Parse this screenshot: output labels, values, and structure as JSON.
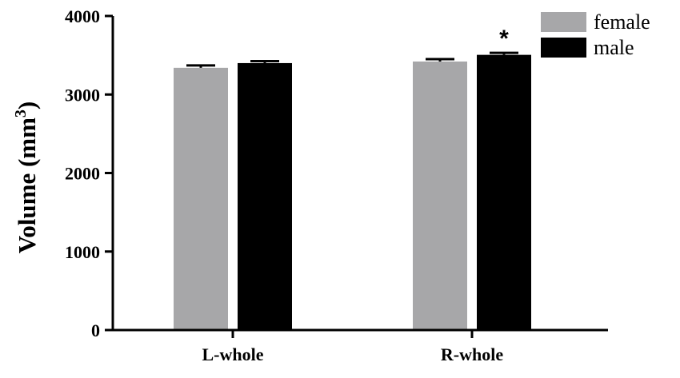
{
  "chart_data": {
    "type": "bar",
    "categories": [
      "L-whole",
      "R-whole"
    ],
    "series": [
      {
        "name": "female",
        "values": [
          3340,
          3420
        ],
        "errors": [
          30,
          30
        ],
        "color": "#a7a7a9"
      },
      {
        "name": "male",
        "values": [
          3400,
          3505
        ],
        "errors": [
          25,
          25
        ],
        "color": "#000000"
      }
    ],
    "ylabel_text": "Volume (mm",
    "ylabel_sup": "3",
    "ylabel_close": ")",
    "ylim": [
      0,
      4000
    ],
    "yticks": [
      "0",
      "1000",
      "2000",
      "3000",
      "4000"
    ],
    "ytick_values": [
      0,
      1000,
      2000,
      3000,
      4000
    ],
    "annotations": [
      {
        "text": "*",
        "category": "R-whole",
        "series": "male"
      }
    ],
    "legend_position": "top-right",
    "grid": false
  }
}
